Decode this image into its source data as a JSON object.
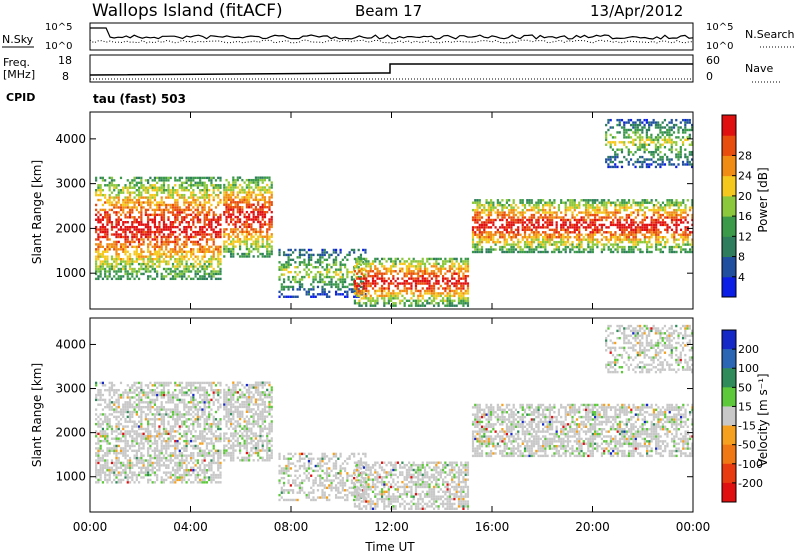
{
  "header": {
    "title": "Wallops Island (fitACF)",
    "beam": "Beam 17",
    "date": "13/Apr/2012"
  },
  "params": {
    "nsky_label": "N.Sky",
    "nsearch_label": "N.Search",
    "noise_ticks": [
      "10^5",
      "10^0"
    ],
    "freq_label_1": "Freq.",
    "freq_label_2": "[MHz]",
    "freq_ticks": [
      "18",
      "8"
    ],
    "nave_label": "Nave",
    "nave_ticks": [
      "60",
      "0"
    ],
    "cpid_label": "CPID",
    "cpid_value": "tau (fast) 503"
  },
  "time_axis": {
    "label": "Time UT",
    "ticks": [
      "00:00",
      "04:00",
      "08:00",
      "12:00",
      "16:00",
      "20:00",
      "00:00"
    ]
  },
  "chart_data": [
    {
      "type": "heatmap",
      "panel": "power",
      "ylabel": "Slant Range [km]",
      "xlabel": "Time UT",
      "xlim": [
        0,
        24
      ],
      "ylim": [
        200,
        4600
      ],
      "yticks": [
        1000,
        2000,
        3000,
        4000
      ],
      "colorbar": {
        "label": "Power [dB]",
        "ticks": [
          "4",
          "8",
          "12",
          "16",
          "20",
          "24",
          "28"
        ],
        "colors": [
          "#0a1ee6",
          "#1f4f9e",
          "#2e7d5c",
          "#3a9a4a",
          "#8cc83c",
          "#f5c81e",
          "#f08c14",
          "#e84d0e",
          "#e01010"
        ]
      },
      "regions": [
        {
          "t0": 0.2,
          "t1": 5.2,
          "r0": 900,
          "r1": 3200,
          "level": "strong"
        },
        {
          "t0": 5.3,
          "t1": 7.2,
          "r0": 1400,
          "r1": 3200,
          "level": "strong"
        },
        {
          "t0": 7.5,
          "t1": 11.0,
          "r0": 500,
          "r1": 1600,
          "level": "medium"
        },
        {
          "t0": 10.5,
          "t1": 15.0,
          "r0": 300,
          "r1": 1400,
          "level": "strong"
        },
        {
          "t0": 15.2,
          "t1": 24.0,
          "r0": 1500,
          "r1": 2700,
          "level": "strong"
        },
        {
          "t0": 20.5,
          "t1": 24.0,
          "r0": 3400,
          "r1": 4500,
          "level": "medium"
        }
      ]
    },
    {
      "type": "heatmap",
      "panel": "velocity",
      "ylabel": "Slant Range [km]",
      "xlabel": "Time UT",
      "xlim": [
        0,
        24
      ],
      "ylim": [
        200,
        4600
      ],
      "yticks": [
        1000,
        2000,
        3000,
        4000
      ],
      "colorbar": {
        "label": "Velocity [m s⁻¹]",
        "ticks": [
          "200",
          "100",
          "50",
          "15",
          "-15",
          "-50",
          "-100",
          "-200"
        ],
        "colors": [
          "#1428c8",
          "#2a66b4",
          "#2f8c5a",
          "#5cc83a",
          "#c8c8c8",
          "#f5a01e",
          "#f07814",
          "#e83c10",
          "#e01010"
        ]
      }
    }
  ]
}
